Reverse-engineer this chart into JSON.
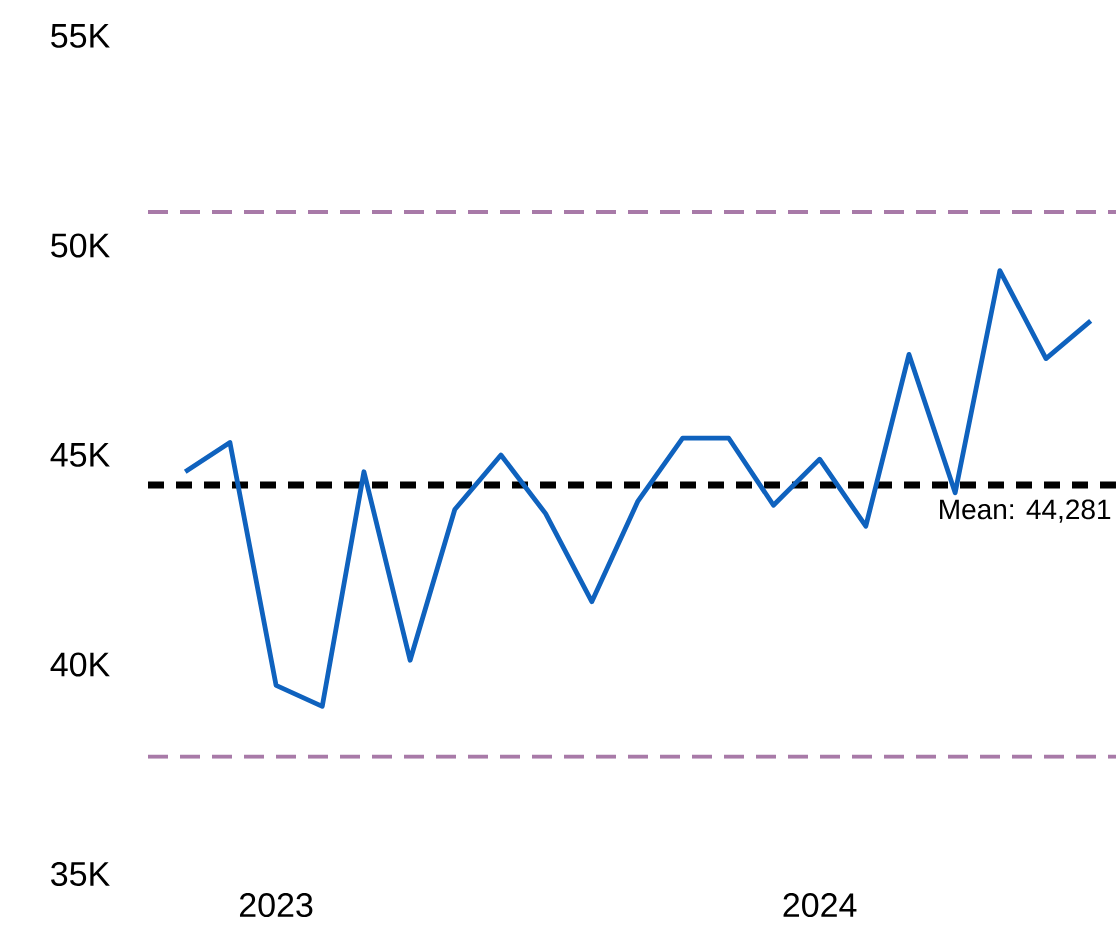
{
  "chart_data": {
    "type": "line",
    "x": [
      "2022-11",
      "2022-12",
      "2023-01",
      "2023-02",
      "2023-03",
      "2023-04",
      "2023-05",
      "2023-06",
      "2023-07",
      "2023-08",
      "2023-09",
      "2023-10",
      "2023-11",
      "2023-12",
      "2024-01",
      "2024-02",
      "2024-03",
      "2024-04",
      "2024-05",
      "2024-06",
      "2024-07"
    ],
    "series": [
      {
        "color": "#0f62be",
        "values": [
          44600,
          45300,
          39500,
          39000,
          44600,
          40100,
          43700,
          45000,
          43600,
          41500,
          43900,
          45400,
          45400,
          43800,
          44900,
          43300,
          47400,
          44100,
          49400,
          47300,
          48200
        ]
      }
    ],
    "xlim": [
      "2022-10-07",
      "2024-07-18"
    ],
    "xticks": [
      {
        "value": "2023-01",
        "label": "2023"
      },
      {
        "value": "2024-01",
        "label": "2024"
      }
    ],
    "ylim": [
      35000,
      55000
    ],
    "yticks": [
      {
        "value": 35000,
        "label": "35K"
      },
      {
        "value": 40000,
        "label": "40K"
      },
      {
        "value": 45000,
        "label": "45K"
      },
      {
        "value": 50000,
        "label": "50K"
      },
      {
        "value": 55000,
        "label": "55K"
      }
    ],
    "ref_lines": [
      {
        "axis": "y",
        "value": 44281,
        "label": "Mean: 44,281",
        "color": "#000000",
        "line_style": "dashed"
      },
      {
        "axis": "y",
        "value": 50800,
        "color": "#a87aa8",
        "line_style": "dashed"
      },
      {
        "axis": "y",
        "value": 37800,
        "color": "#a87aa8",
        "line_style": "dashed"
      }
    ],
    "grid": false,
    "marker": "none",
    "line_style": "solid"
  }
}
